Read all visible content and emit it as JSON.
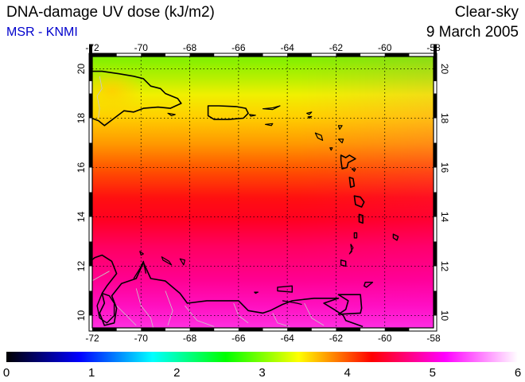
{
  "header": {
    "title": "DNA-damage UV dose (kJ/m2)",
    "source": "MSR - KNMI",
    "product": "Clear-sky",
    "date": "9 March 2005"
  },
  "map": {
    "lon_range": [
      -72,
      -58
    ],
    "lat_range": [
      9.5,
      20.5
    ],
    "lon_ticks": [
      -72,
      -70,
      -68,
      -66,
      -64,
      -62,
      -60,
      -58
    ],
    "lat_ticks": [
      10,
      12,
      14,
      16,
      18,
      20
    ],
    "lon_tick_labels": [
      "-72",
      "-70",
      "-68",
      "-66",
      "-64",
      "-62",
      "-60",
      "-58"
    ],
    "lat_tick_labels": [
      "10",
      "12",
      "14",
      "16",
      "18",
      "20"
    ],
    "grid": true,
    "coast_color": "#000000",
    "border_color": "#c8c8c8"
  },
  "colorbar": {
    "min": 0,
    "max": 6,
    "labels": [
      "0",
      "1",
      "2",
      "3",
      "4",
      "5",
      "6"
    ],
    "colors": [
      "#000000",
      "#0000ff",
      "#00ffff",
      "#00ff00",
      "#ffff00",
      "#ff0000",
      "#ff00ff",
      "#ffffff"
    ]
  }
}
